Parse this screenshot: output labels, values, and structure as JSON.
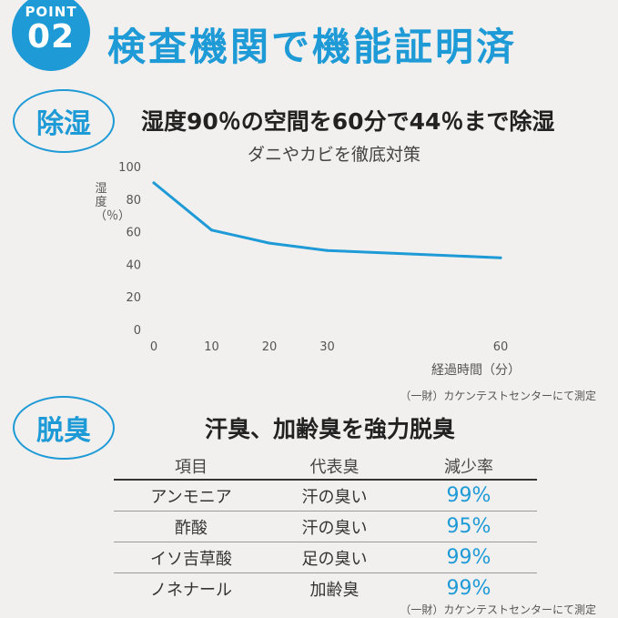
{
  "point": {
    "word": "POINT",
    "number": "02"
  },
  "headline": "検査機関で機能証明済",
  "colors": {
    "accent": "#1e9ad6",
    "background": "#f2f0ef",
    "line": "#1e9ad6"
  },
  "dehumidify": {
    "badge": "除湿",
    "title": "湿度90％の空間を60分で44％まで除湿",
    "subtitle": "ダニやカビを徹底対策",
    "y_label": "湿度（％）",
    "x_label": "経過時間（分）",
    "credit": "（一財）カケンテストセンターにて測定"
  },
  "chart_data": {
    "type": "line",
    "title": "",
    "xlabel": "経過時間（分）",
    "ylabel": "湿度（％）",
    "x": [
      0,
      10,
      20,
      30,
      60
    ],
    "x_ticks": [
      "0",
      "10",
      "20",
      "30",
      "60"
    ],
    "y_ticks": [
      "0",
      "20",
      "40",
      "60",
      "80",
      "100"
    ],
    "xlim": [
      0,
      60
    ],
    "ylim": [
      0,
      100
    ],
    "grid": false,
    "series": [
      {
        "values": [
          90,
          61,
          53,
          48.5,
          44
        ],
        "color": "#1e9ad6"
      }
    ]
  },
  "deodorize": {
    "badge": "脱臭",
    "title": "汗臭、加齢臭を強力脱臭",
    "credit": "（一財）カケンテストセンターにて測定",
    "headers": [
      "項目",
      "代表臭",
      "減少率"
    ],
    "rows": [
      [
        "アンモニア",
        "汗の臭い",
        "99%"
      ],
      [
        "酢酸",
        "汗の臭い",
        "95%"
      ],
      [
        "イソ吉草酸",
        "足の臭い",
        "99%"
      ],
      [
        "ノネナール",
        "加齢臭",
        "99%"
      ]
    ]
  }
}
